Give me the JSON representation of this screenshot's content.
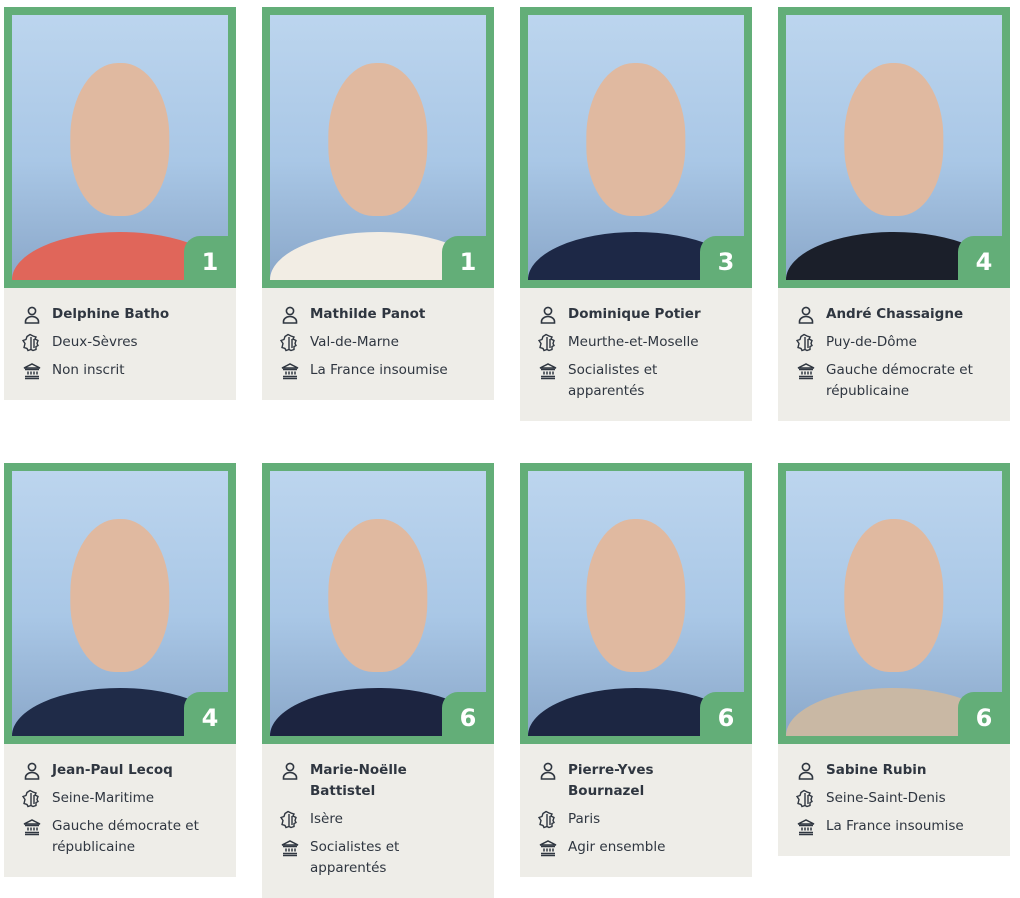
{
  "colors": {
    "frame": "#63ae78",
    "info_bg": "#eeede8",
    "text": "#2f3640"
  },
  "icons": {
    "person": "person-icon",
    "region": "france-map-icon",
    "group": "institution-icon"
  },
  "deputies": [
    {
      "name": "Delphine Batho",
      "department": "Deux-Sèvres",
      "group": "Non inscrit",
      "rank": "1",
      "body": "#e0665a"
    },
    {
      "name": "Mathilde Panot",
      "department": "Val-de-Marne",
      "group": "La France insoumise",
      "rank": "1",
      "body": "#f2ede4"
    },
    {
      "name": "Dominique Potier",
      "department": "Meurthe-et-Moselle",
      "group": "Socialistes et apparentés",
      "rank": "3",
      "body": "#1d2846"
    },
    {
      "name": "André Chassaigne",
      "department": "Puy-de-Dôme",
      "group": "Gauche démocrate et républicaine",
      "rank": "4",
      "body": "#1b1f2a"
    },
    {
      "name": "Jean-Paul Lecoq",
      "department": "Seine-Maritime",
      "group": "Gauche démocrate et républicaine",
      "rank": "4",
      "body": "#1f2b48"
    },
    {
      "name": "Marie-Noëlle Battistel",
      "department": "Isère",
      "group": "Socialistes et apparentés",
      "rank": "6",
      "body": "#1c2440"
    },
    {
      "name": "Pierre-Yves Bournazel",
      "department": "Paris",
      "group": "Agir ensemble",
      "rank": "6",
      "body": "#1c2642"
    },
    {
      "name": "Sabine Rubin",
      "department": "Seine-Saint-Denis",
      "group": "La France insoumise",
      "rank": "6",
      "body": "#c9b8a4"
    }
  ]
}
